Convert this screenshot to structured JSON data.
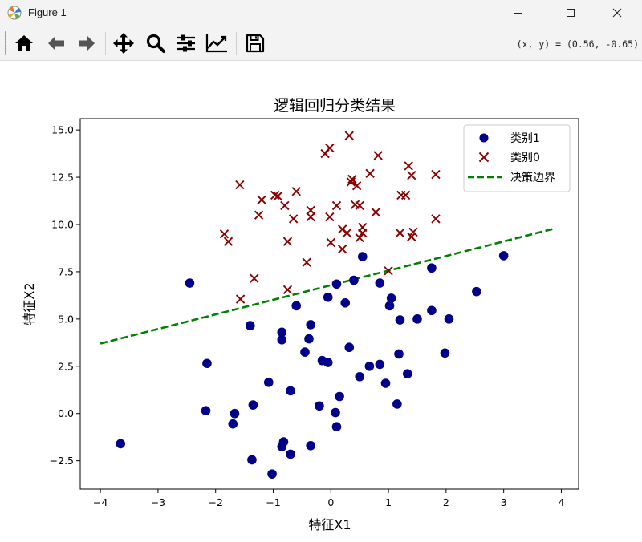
{
  "window": {
    "title": "Figure 1"
  },
  "toolbar": {
    "tools": [
      "home-icon",
      "back-arrow-icon",
      "forward-arrow-icon",
      "pan-icon",
      "zoom-icon",
      "configure-subplots-icon",
      "edit-axis-icon",
      "save-icon"
    ],
    "coords_text": "(x, y) = (0.56, -0.65)"
  },
  "colors": {
    "class1": "#00008b",
    "class0": "#8b0000",
    "boundary": "#008000"
  },
  "chart_data": {
    "type": "scatter",
    "title": "逻辑回归分类结果",
    "xlabel": "特征X1",
    "ylabel": "特征X2",
    "xlim": [
      -4.35,
      4.3
    ],
    "ylim": [
      -4.0,
      15.6
    ],
    "xticks": [
      -4,
      -3,
      -2,
      -1,
      0,
      1,
      2,
      3,
      4
    ],
    "xtick_labels": [
      "−4",
      "−3",
      "−2",
      "−1",
      "0",
      "1",
      "2",
      "3",
      "4"
    ],
    "yticks": [
      -2.5,
      0.0,
      2.5,
      5.0,
      7.5,
      10.0,
      12.5,
      15.0
    ],
    "ytick_labels": [
      "−2.5",
      "0.0",
      "2.5",
      "5.0",
      "7.5",
      "10.0",
      "12.5",
      "15.0"
    ],
    "grid": false,
    "legend_position": "top-right",
    "legend": [
      "类别1",
      "类别0",
      "决策边界"
    ],
    "series": [
      {
        "name": "类别1",
        "marker": "circle",
        "points": [
          [
            -3.65,
            -1.6
          ],
          [
            -2.45,
            6.9
          ],
          [
            -2.15,
            2.65
          ],
          [
            -2.17,
            0.15
          ],
          [
            -1.67,
            0.0
          ],
          [
            -1.7,
            -0.55
          ],
          [
            -1.4,
            4.65
          ],
          [
            -1.35,
            0.45
          ],
          [
            -1.37,
            -2.45
          ],
          [
            -1.08,
            1.65
          ],
          [
            -1.02,
            -3.2
          ],
          [
            -0.85,
            4.3
          ],
          [
            -0.85,
            3.9
          ],
          [
            -0.82,
            -1.5
          ],
          [
            -0.85,
            -1.75
          ],
          [
            -0.7,
            1.2
          ],
          [
            -0.7,
            -2.15
          ],
          [
            -0.6,
            5.7
          ],
          [
            -0.45,
            3.25
          ],
          [
            -0.38,
            3.95
          ],
          [
            -0.35,
            4.7
          ],
          [
            -0.35,
            -1.7
          ],
          [
            -0.2,
            0.4
          ],
          [
            -0.15,
            2.8
          ],
          [
            -0.05,
            6.15
          ],
          [
            -0.05,
            2.7
          ],
          [
            0.08,
            0.05
          ],
          [
            0.1,
            -0.7
          ],
          [
            0.1,
            6.85
          ],
          [
            0.15,
            0.9
          ],
          [
            0.25,
            5.85
          ],
          [
            0.32,
            3.5
          ],
          [
            0.4,
            7.05
          ],
          [
            0.5,
            1.95
          ],
          [
            0.55,
            8.3
          ],
          [
            0.67,
            2.5
          ],
          [
            0.85,
            2.6
          ],
          [
            0.85,
            6.9
          ],
          [
            0.95,
            1.6
          ],
          [
            1.02,
            5.7
          ],
          [
            1.05,
            6.1
          ],
          [
            1.15,
            0.5
          ],
          [
            1.18,
            3.15
          ],
          [
            1.2,
            4.95
          ],
          [
            1.33,
            2.1
          ],
          [
            1.5,
            5.0
          ],
          [
            1.75,
            7.7
          ],
          [
            1.75,
            5.45
          ],
          [
            1.98,
            3.2
          ],
          [
            2.05,
            5.0
          ],
          [
            2.53,
            6.45
          ],
          [
            3.0,
            8.35
          ]
        ]
      },
      {
        "name": "类别0",
        "marker": "x",
        "points": [
          [
            -1.85,
            9.5
          ],
          [
            -1.78,
            9.1
          ],
          [
            -1.58,
            12.1
          ],
          [
            -1.57,
            6.05
          ],
          [
            -1.33,
            7.15
          ],
          [
            -1.25,
            10.5
          ],
          [
            -1.2,
            11.3
          ],
          [
            -0.97,
            11.55
          ],
          [
            -0.92,
            11.5
          ],
          [
            -0.8,
            11.0
          ],
          [
            -0.75,
            6.55
          ],
          [
            -0.75,
            9.1
          ],
          [
            -0.65,
            10.3
          ],
          [
            -0.6,
            11.75
          ],
          [
            -0.42,
            8.0
          ],
          [
            -0.35,
            10.75
          ],
          [
            -0.35,
            10.4
          ],
          [
            -0.1,
            13.75
          ],
          [
            -0.02,
            14.05
          ],
          [
            -0.02,
            10.4
          ],
          [
            0.0,
            9.05
          ],
          [
            0.1,
            11.0
          ],
          [
            0.2,
            9.75
          ],
          [
            0.2,
            8.7
          ],
          [
            0.28,
            9.55
          ],
          [
            0.32,
            14.7
          ],
          [
            0.35,
            12.25
          ],
          [
            0.37,
            12.4
          ],
          [
            0.42,
            11.05
          ],
          [
            0.45,
            12.05
          ],
          [
            0.5,
            9.3
          ],
          [
            0.5,
            11.0
          ],
          [
            0.55,
            9.55
          ],
          [
            0.55,
            9.85
          ],
          [
            0.68,
            12.7
          ],
          [
            0.78,
            10.65
          ],
          [
            0.82,
            13.65
          ],
          [
            1.0,
            7.55
          ],
          [
            1.2,
            9.55
          ],
          [
            1.22,
            11.55
          ],
          [
            1.3,
            11.55
          ],
          [
            1.35,
            13.1
          ],
          [
            1.4,
            12.6
          ],
          [
            1.4,
            9.35
          ],
          [
            1.43,
            9.6
          ],
          [
            1.82,
            12.65
          ],
          [
            1.82,
            10.3
          ]
        ]
      },
      {
        "name": "决策边界",
        "type": "line",
        "style": "dashed",
        "x": [
          -4.0,
          3.9
        ],
        "y": [
          3.7,
          9.8
        ]
      }
    ]
  }
}
